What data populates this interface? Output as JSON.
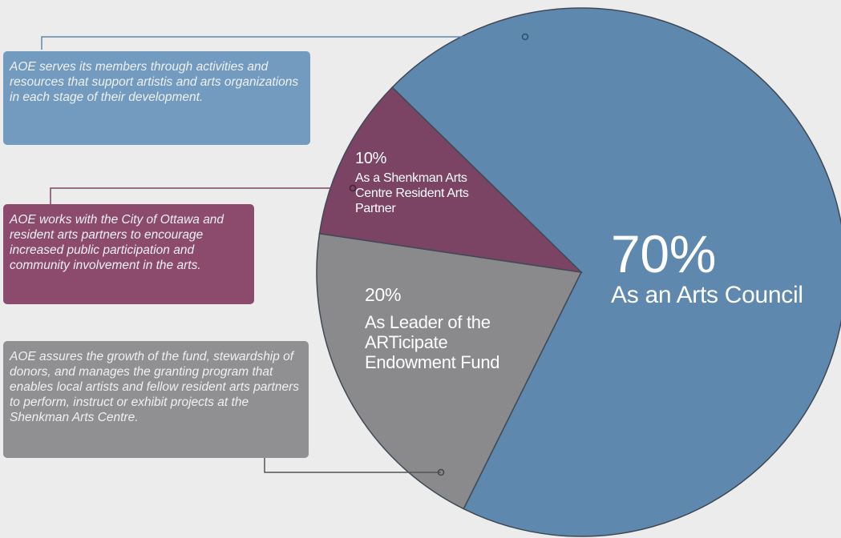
{
  "chart_data": {
    "type": "pie",
    "categories": [
      "As an Arts Council",
      "As Leader of the ARTicipate Endowment Fund",
      "As a Shenkman Arts Centre Resident Arts Partner"
    ],
    "values": [
      70,
      20,
      10
    ],
    "value_labels": [
      "70%",
      "20%",
      "10%"
    ],
    "colors": [
      "#5e88ad",
      "#8a8a8c",
      "#7c4464"
    ],
    "annotations": [
      "AOE serves its members through activities and resources that support artistis and arts organizations in each stage of their development.",
      "AOE works with the City of Ottawa and resident arts partners to encourage increased public participation and community involvement in the arts.",
      "AOE assures the growth of the fund, stewardship of donors, and manages the granting program that enables local artists and fellow resident arts partners to perform, instruct or exhibit projects at the Shenkman Arts Centre."
    ]
  }
}
